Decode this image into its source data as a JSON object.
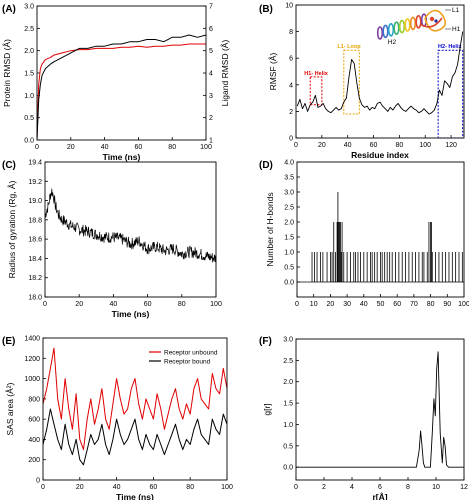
{
  "chart_data": [
    {
      "panel_label": "(A)",
      "type": "line",
      "xlabel": "Time (ns)",
      "ylabel": "Protein RMSD (Å)",
      "ylabel_right": "Ligand RMSD (Å)",
      "xlim": [
        0,
        100
      ],
      "ylim": [
        0.0,
        3.0
      ],
      "ylim_right": [
        1,
        7
      ],
      "xticks": [
        "0",
        "20",
        "40",
        "60",
        "80",
        "100"
      ],
      "yticks": [
        "0.0",
        "0.5",
        "1.0",
        "1.5",
        "2.0",
        "2.5",
        "3.0"
      ],
      "yticks_right": [
        "1",
        "2",
        "3",
        "4",
        "5",
        "6",
        "7"
      ],
      "colors": {
        "protein": "#000000",
        "ligand": "#e00000"
      },
      "series": [
        {
          "axis": "left",
          "x": [
            0,
            1,
            2,
            3,
            5,
            8,
            10,
            15,
            20,
            25,
            30,
            35,
            40,
            45,
            50,
            55,
            60,
            65,
            70,
            75,
            80,
            85,
            90,
            95,
            100
          ],
          "values": [
            0.0,
            0.9,
            1.25,
            1.45,
            1.6,
            1.7,
            1.75,
            1.85,
            1.95,
            2.05,
            2.05,
            2.1,
            2.1,
            2.15,
            2.15,
            2.2,
            2.2,
            2.25,
            2.25,
            2.2,
            2.3,
            2.3,
            2.35,
            2.3,
            2.35
          ]
        },
        {
          "axis": "right",
          "x": [
            0,
            1,
            2,
            3,
            5,
            8,
            10,
            15,
            20,
            25,
            30,
            35,
            40,
            45,
            50,
            55,
            60,
            65,
            70,
            75,
            80,
            85,
            90,
            95,
            100
          ],
          "values": [
            1.0,
            3.5,
            4.2,
            4.4,
            4.6,
            4.7,
            4.8,
            4.9,
            5.0,
            5.05,
            5.05,
            5.1,
            5.1,
            5.1,
            5.15,
            5.15,
            5.2,
            5.15,
            5.2,
            5.2,
            5.25,
            5.25,
            5.3,
            5.3,
            5.3
          ]
        }
      ]
    },
    {
      "panel_label": "(B)",
      "type": "line",
      "xlabel": "Residue index",
      "ylabel": "RMSF (Å)",
      "xlim": [
        0,
        130
      ],
      "ylim": [
        0,
        10
      ],
      "xticks": [
        "0",
        "20",
        "40",
        "60",
        "80",
        "100",
        "120"
      ],
      "yticks": [
        "0",
        "2",
        "4",
        "6",
        "8",
        "10"
      ],
      "annotations": [
        "H1- Helix",
        "L1- Loop",
        "H2- Helix"
      ],
      "structure_labels": [
        "L1",
        "H1",
        "H2"
      ],
      "colors": {
        "h1": "#e00000",
        "l1": "#e8a000",
        "h2": "#0000cc"
      },
      "series": [
        {
          "x": [
            1,
            3,
            5,
            7,
            9,
            11,
            13,
            15,
            17,
            19,
            21,
            23,
            25,
            27,
            29,
            31,
            33,
            35,
            37,
            39,
            41,
            43,
            45,
            47,
            49,
            51,
            53,
            55,
            57,
            59,
            61,
            63,
            65,
            67,
            69,
            71,
            73,
            75,
            77,
            79,
            81,
            83,
            85,
            87,
            89,
            91,
            93,
            95,
            97,
            99,
            101,
            103,
            105,
            107,
            109,
            111,
            113,
            115,
            117,
            119,
            121,
            123,
            125,
            127,
            129
          ],
          "values": [
            2.4,
            2.9,
            2.2,
            2.6,
            2.0,
            2.5,
            2.7,
            3.2,
            2.3,
            2.4,
            2.6,
            2.2,
            2.0,
            1.9,
            2.1,
            2.3,
            2.1,
            2.2,
            2.7,
            3.0,
            4.6,
            5.9,
            5.6,
            4.2,
            3.0,
            2.5,
            2.3,
            2.4,
            2.1,
            2.3,
            2.2,
            2.6,
            2.7,
            2.4,
            2.2,
            2.0,
            2.3,
            2.1,
            2.4,
            2.6,
            2.3,
            2.1,
            2.0,
            2.2,
            2.4,
            2.2,
            2.1,
            1.9,
            2.0,
            2.2,
            2.0,
            1.8,
            1.9,
            2.1,
            2.6,
            3.6,
            3.2,
            4.3,
            4.1,
            3.8,
            4.6,
            4.9,
            5.5,
            6.8,
            8.0
          ]
        }
      ]
    },
    {
      "panel_label": "(C)",
      "type": "line",
      "xlabel": "Time (ns)",
      "ylabel": "Radius of gyration (Rg, Å)",
      "xlim": [
        0,
        100
      ],
      "ylim": [
        18.0,
        19.4
      ],
      "xticks": [
        "0",
        "20",
        "40",
        "60",
        "80",
        "100"
      ],
      "yticks": [
        "18.0",
        "18.2",
        "18.4",
        "18.6",
        "18.8",
        "19.0",
        "19.2",
        "19.4"
      ],
      "series": [
        {
          "x": [
            0,
            1,
            2,
            3,
            4,
            5,
            6,
            8,
            10,
            12,
            15,
            18,
            20,
            25,
            30,
            35,
            40,
            45,
            50,
            55,
            60,
            65,
            70,
            75,
            80,
            85,
            90,
            95,
            100
          ],
          "values": [
            18.85,
            18.9,
            18.95,
            19.05,
            19.1,
            19.05,
            18.95,
            18.85,
            18.8,
            18.78,
            18.74,
            18.72,
            18.7,
            18.68,
            18.65,
            18.62,
            18.62,
            18.6,
            18.55,
            18.58,
            18.5,
            18.52,
            18.48,
            18.5,
            18.45,
            18.47,
            18.45,
            18.42,
            18.4
          ]
        }
      ]
    },
    {
      "panel_label": "(D)",
      "type": "bar",
      "xlabel": "",
      "ylabel": "Number of H-bonds",
      "xlim": [
        0,
        100
      ],
      "ylim": [
        -0.5,
        4.0
      ],
      "xticks": [
        "0",
        "10",
        "20",
        "30",
        "40",
        "50",
        "60",
        "70",
        "80",
        "90",
        "100"
      ],
      "yticks": [
        "0.0",
        "0.5",
        "1.0",
        "1.5",
        "2.0",
        "2.5",
        "3.0",
        "3.5",
        "4.0"
      ],
      "series": [
        {
          "x": [
            9,
            10.5,
            12,
            14,
            15.5,
            18,
            20,
            21,
            22,
            23,
            24,
            24.5,
            25,
            25.5,
            26,
            26.5,
            27,
            28,
            30,
            32,
            34,
            35,
            36.5,
            38,
            40,
            42,
            44,
            45,
            46.5,
            48,
            50,
            51,
            52.5,
            54,
            55.5,
            57,
            59,
            61,
            63,
            65,
            67,
            69,
            71,
            73,
            75,
            76,
            78,
            79,
            80,
            80.5,
            81,
            83,
            85,
            87,
            89,
            91,
            93,
            95,
            97,
            99
          ],
          "values": [
            1,
            1,
            1,
            1,
            1,
            1,
            1,
            1,
            2,
            1,
            2,
            3,
            2,
            2,
            2,
            1,
            2,
            1,
            1,
            1,
            1,
            1,
            1,
            1,
            1,
            1,
            1,
            1,
            1,
            1,
            1,
            1,
            1,
            1,
            1,
            1,
            1,
            1,
            1,
            1,
            1,
            1,
            1,
            1,
            1,
            1,
            1,
            2,
            2,
            2,
            1,
            1,
            1,
            1,
            1,
            1,
            1,
            1,
            1,
            1
          ]
        }
      ]
    },
    {
      "panel_label": "(E)",
      "type": "line",
      "xlabel": "Time (ns)",
      "ylabel": "SAS area (Å²)",
      "xlim": [
        0,
        100
      ],
      "ylim": [
        0,
        1400
      ],
      "xticks": [
        "0",
        "20",
        "40",
        "60",
        "80",
        "100"
      ],
      "yticks": [
        "0",
        "200",
        "400",
        "600",
        "800",
        "1000",
        "1200",
        "1400"
      ],
      "legend_position": "top-right",
      "colors": {
        "unbound": "#e00000",
        "bound": "#000000"
      },
      "series": [
        {
          "name": "Receptor unbound",
          "x": [
            0,
            2,
            4,
            6,
            8,
            10,
            12,
            14,
            16,
            18,
            20,
            22,
            24,
            26,
            28,
            30,
            32,
            34,
            36,
            38,
            40,
            42,
            44,
            46,
            48,
            50,
            52,
            54,
            56,
            58,
            60,
            62,
            64,
            66,
            68,
            70,
            72,
            74,
            76,
            78,
            80,
            82,
            84,
            86,
            88,
            90,
            92,
            94,
            96,
            98,
            100
          ],
          "values": [
            750,
            900,
            1100,
            1300,
            800,
            600,
            1000,
            700,
            500,
            850,
            400,
            300,
            600,
            800,
            550,
            700,
            900,
            600,
            500,
            750,
            1000,
            800,
            650,
            700,
            900,
            1000,
            750,
            600,
            800,
            700,
            600,
            850,
            700,
            500,
            650,
            800,
            900,
            700,
            600,
            750,
            650,
            900,
            1000,
            800,
            750,
            700,
            1050,
            900,
            850,
            1100,
            900
          ]
        },
        {
          "name": "Receptor bound",
          "x": [
            0,
            2,
            4,
            6,
            8,
            10,
            12,
            14,
            16,
            18,
            20,
            22,
            24,
            26,
            28,
            30,
            32,
            34,
            36,
            38,
            40,
            42,
            44,
            46,
            48,
            50,
            52,
            54,
            56,
            58,
            60,
            62,
            64,
            66,
            68,
            70,
            72,
            74,
            76,
            78,
            80,
            82,
            84,
            86,
            88,
            90,
            92,
            94,
            96,
            98,
            100
          ],
          "values": [
            350,
            500,
            700,
            550,
            400,
            300,
            550,
            350,
            250,
            400,
            200,
            150,
            300,
            450,
            350,
            400,
            550,
            350,
            250,
            400,
            600,
            450,
            350,
            400,
            500,
            600,
            400,
            300,
            450,
            350,
            300,
            450,
            350,
            250,
            350,
            450,
            550,
            400,
            300,
            400,
            350,
            500,
            600,
            450,
            400,
            350,
            600,
            500,
            450,
            650,
            550
          ]
        }
      ]
    },
    {
      "panel_label": "(F)",
      "type": "line",
      "xlabel": "r[Å]",
      "ylabel": "g[r]",
      "xlim": [
        0,
        12
      ],
      "ylim": [
        -0.3,
        3.0
      ],
      "xticks": [
        "0",
        "2",
        "4",
        "6",
        "8",
        "10",
        "12"
      ],
      "yticks": [
        "0.0",
        "0.5",
        "1.0",
        "1.5",
        "2.0",
        "2.5",
        "3.0"
      ],
      "series": [
        {
          "x": [
            0,
            8.6,
            8.8,
            8.9,
            9.0,
            9.1,
            9.2,
            9.6,
            9.75,
            9.85,
            9.95,
            10.05,
            10.15,
            10.3,
            10.45,
            10.55,
            10.65,
            10.75,
            10.9,
            12
          ],
          "values": [
            0,
            0,
            0.4,
            0.85,
            0.5,
            0.1,
            0,
            0,
            0.9,
            1.6,
            1.2,
            2.3,
            2.7,
            0.8,
            0.1,
            0.7,
            0.5,
            0.05,
            0,
            0
          ]
        }
      ]
    }
  ]
}
